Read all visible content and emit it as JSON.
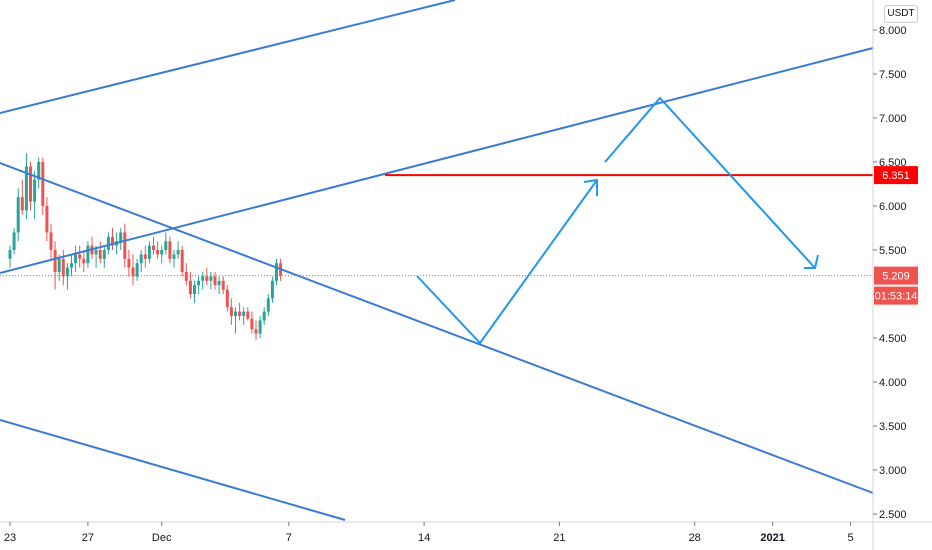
{
  "currency": "USDT",
  "chart_data": {
    "type": "candlestick",
    "y_scale": "linear",
    "ylim": [
      2.45,
      8.1
    ],
    "y_ticks": [
      "2.500",
      "3.000",
      "3.500",
      "4.000",
      "4.500",
      "5.000",
      "5.500",
      "6.000",
      "6.500",
      "7.000",
      "7.500",
      "8.000"
    ],
    "x_ticks": [
      {
        "label": "23",
        "bar": 0
      },
      {
        "label": "27",
        "bar": 19
      },
      {
        "label": "Dec",
        "bar": 37
      },
      {
        "label": "7",
        "bar": 68
      },
      {
        "label": "14",
        "bar": 101
      },
      {
        "label": "21",
        "bar": 134
      },
      {
        "label": "28",
        "bar": 167
      },
      {
        "label": "2021",
        "bar": 186,
        "bold": true
      },
      {
        "label": "5",
        "bar": 205
      }
    ],
    "price_label": {
      "value": "5.209",
      "countdown": "01:53:14",
      "price": 5.209,
      "color": "#ef5350"
    },
    "level_label": {
      "value": "6.351",
      "price": 6.351,
      "color": "#ff0000"
    },
    "colors": {
      "up": "#26a69a",
      "down": "#ef5350",
      "trendline": "#3a7bd5",
      "projection": "#2196f3",
      "level": "#ff0000"
    },
    "candles": [
      [
        5.4,
        5.55,
        5.3,
        5.5
      ],
      [
        5.5,
        5.75,
        5.45,
        5.7
      ],
      [
        5.7,
        6.2,
        5.6,
        6.1
      ],
      [
        6.1,
        6.3,
        5.9,
        5.95
      ],
      [
        5.95,
        6.6,
        5.85,
        6.45
      ],
      [
        6.45,
        6.5,
        5.95,
        6.05
      ],
      [
        6.05,
        6.4,
        5.85,
        6.3
      ],
      [
        6.3,
        6.55,
        6.2,
        6.5
      ],
      [
        6.5,
        6.55,
        5.9,
        6.0
      ],
      [
        6.0,
        6.1,
        5.6,
        5.7
      ],
      [
        5.7,
        5.8,
        5.4,
        5.5
      ],
      [
        5.5,
        5.6,
        5.05,
        5.25
      ],
      [
        5.25,
        5.45,
        5.15,
        5.4
      ],
      [
        5.4,
        5.5,
        5.1,
        5.2
      ],
      [
        5.2,
        5.35,
        5.05,
        5.3
      ],
      [
        5.3,
        5.45,
        5.2,
        5.35
      ],
      [
        5.35,
        5.55,
        5.25,
        5.45
      ],
      [
        5.45,
        5.55,
        5.3,
        5.4
      ],
      [
        5.4,
        5.5,
        5.25,
        5.35
      ],
      [
        5.35,
        5.6,
        5.3,
        5.55
      ],
      [
        5.55,
        5.65,
        5.4,
        5.45
      ],
      [
        5.45,
        5.55,
        5.3,
        5.5
      ],
      [
        5.5,
        5.6,
        5.35,
        5.4
      ],
      [
        5.4,
        5.55,
        5.3,
        5.5
      ],
      [
        5.5,
        5.7,
        5.45,
        5.65
      ],
      [
        5.65,
        5.75,
        5.5,
        5.55
      ],
      [
        5.55,
        5.7,
        5.45,
        5.6
      ],
      [
        5.6,
        5.75,
        5.5,
        5.7
      ],
      [
        5.7,
        5.8,
        5.3,
        5.4
      ],
      [
        5.4,
        5.5,
        5.2,
        5.3
      ],
      [
        5.3,
        5.45,
        5.1,
        5.2
      ],
      [
        5.2,
        5.4,
        5.15,
        5.35
      ],
      [
        5.35,
        5.5,
        5.25,
        5.45
      ],
      [
        5.45,
        5.55,
        5.3,
        5.4
      ],
      [
        5.4,
        5.6,
        5.35,
        5.55
      ],
      [
        5.55,
        5.65,
        5.45,
        5.5
      ],
      [
        5.5,
        5.6,
        5.4,
        5.45
      ],
      [
        5.45,
        5.55,
        5.35,
        5.5
      ],
      [
        5.5,
        5.7,
        5.45,
        5.6
      ],
      [
        5.6,
        5.65,
        5.35,
        5.4
      ],
      [
        5.4,
        5.5,
        5.3,
        5.45
      ],
      [
        5.45,
        5.6,
        5.4,
        5.5
      ],
      [
        5.5,
        5.55,
        5.2,
        5.25
      ],
      [
        5.25,
        5.35,
        5.1,
        5.15
      ],
      [
        5.15,
        5.25,
        4.95,
        5.0
      ],
      [
        5.0,
        5.15,
        4.9,
        5.1
      ],
      [
        5.1,
        5.2,
        5.0,
        5.15
      ],
      [
        5.15,
        5.25,
        5.05,
        5.2
      ],
      [
        5.2,
        5.3,
        5.1,
        5.15
      ],
      [
        5.15,
        5.25,
        5.05,
        5.2
      ],
      [
        5.2,
        5.25,
        5.05,
        5.1
      ],
      [
        5.1,
        5.2,
        5.0,
        5.15
      ],
      [
        5.15,
        5.2,
        5.0,
        5.05
      ],
      [
        5.05,
        5.1,
        4.8,
        4.85
      ],
      [
        4.85,
        4.95,
        4.65,
        4.75
      ],
      [
        4.75,
        4.85,
        4.55,
        4.8
      ],
      [
        4.8,
        4.9,
        4.7,
        4.75
      ],
      [
        4.75,
        4.85,
        4.65,
        4.8
      ],
      [
        4.8,
        4.85,
        4.7,
        4.72
      ],
      [
        4.72,
        4.8,
        4.55,
        4.6
      ],
      [
        4.6,
        4.7,
        4.48,
        4.55
      ],
      [
        4.55,
        4.75,
        4.5,
        4.7
      ],
      [
        4.7,
        4.85,
        4.65,
        4.8
      ],
      [
        4.8,
        5.0,
        4.75,
        4.95
      ],
      [
        4.95,
        5.2,
        4.9,
        5.15
      ],
      [
        5.15,
        5.4,
        5.1,
        5.35
      ],
      [
        5.35,
        5.4,
        5.15,
        5.21
      ]
    ]
  }
}
